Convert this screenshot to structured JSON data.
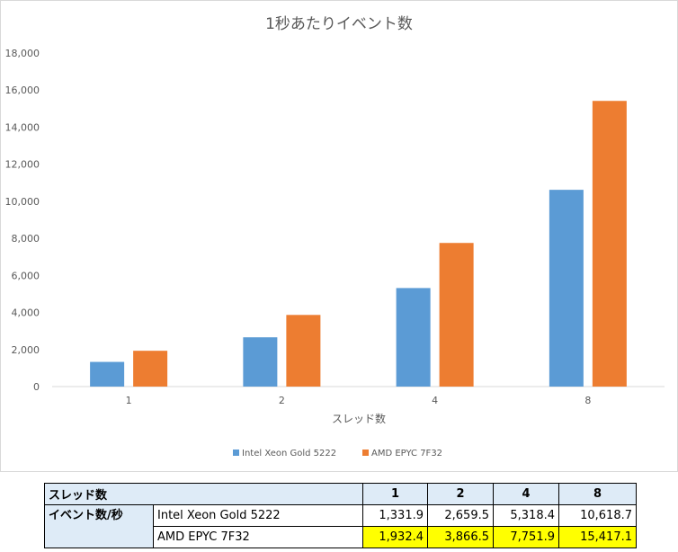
{
  "chart_data": {
    "type": "bar",
    "title": "1秒あたりイベント数",
    "xlabel": "スレッド数",
    "ylabel": "",
    "categories": [
      "1",
      "2",
      "4",
      "8"
    ],
    "ylim": [
      0,
      18000
    ],
    "yticks": [
      "0",
      "2,000",
      "4,000",
      "6,000",
      "8,000",
      "10,000",
      "12,000",
      "14,000",
      "16,000",
      "18,000"
    ],
    "grid": false,
    "legend_position": "bottom",
    "series": [
      {
        "name": "Intel Xeon Gold 5222",
        "color": "#5b9bd5",
        "values": [
          1331.9,
          2659.5,
          5318.4,
          10618.7
        ]
      },
      {
        "name": "AMD EPYC 7F32",
        "color": "#ed7d31",
        "values": [
          1932.4,
          3866.5,
          7751.9,
          15417.1
        ]
      }
    ]
  },
  "table": {
    "header_label": "スレッド数",
    "columns": [
      "1",
      "2",
      "4",
      "8"
    ],
    "row_group_label": "イベント数/秒",
    "rows": [
      {
        "name": "Intel Xeon Gold 5222",
        "values": [
          "1,331.9",
          "2,659.5",
          "5,318.4",
          "10,618.7"
        ]
      },
      {
        "name": "AMD EPYC 7F32",
        "values": [
          "1,932.4",
          "3,866.5",
          "7,751.9",
          "15,417.1"
        ]
      }
    ],
    "highlight_color": "#ffff00"
  }
}
